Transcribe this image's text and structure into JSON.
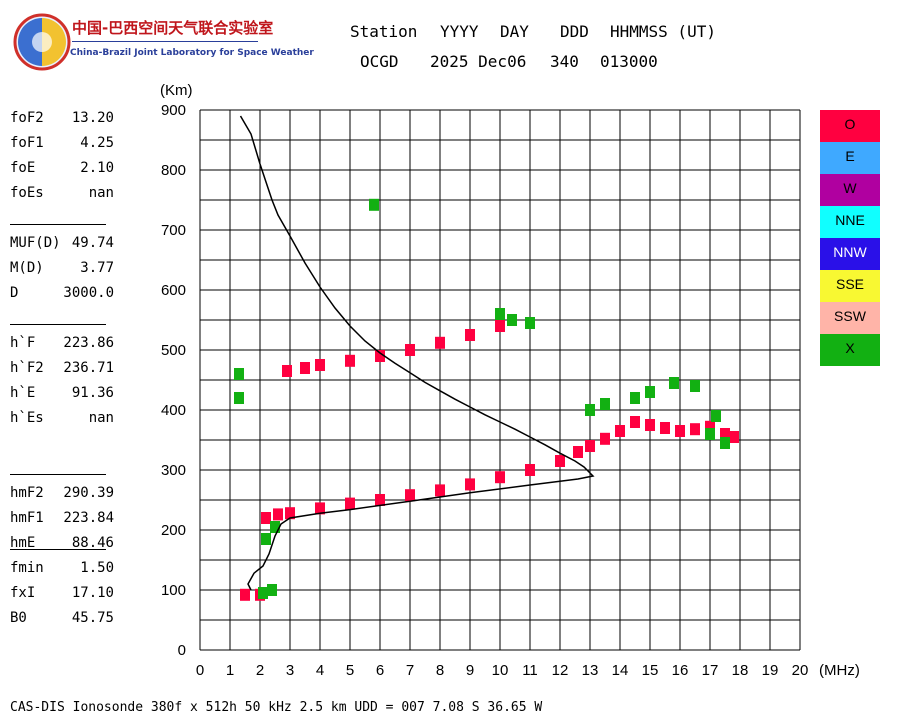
{
  "header": {
    "org_cn": "中国-巴西空间天气联合实验室",
    "org_en": "China-Brazil Joint Laboratory for Space Weather",
    "labels": [
      "Station",
      "YYYY",
      "DAY",
      "DDD",
      "HHMMSS (UT)"
    ],
    "values": [
      "OCGD",
      "2025 Dec06",
      "340",
      "013000"
    ]
  },
  "params": [
    [
      {
        "name": "foF2",
        "value": "13.20"
      },
      {
        "name": "foF1",
        "value": "4.25"
      },
      {
        "name": "foE",
        "value": "2.10"
      },
      {
        "name": "foEs",
        "value": "nan"
      }
    ],
    [
      {
        "name": "MUF(D)",
        "value": "49.74"
      },
      {
        "name": "M(D)",
        "value": "3.77"
      },
      {
        "name": "D",
        "value": "3000.0"
      }
    ],
    [
      {
        "name": "h`F",
        "value": "223.86"
      },
      {
        "name": "h`F2",
        "value": "236.71"
      },
      {
        "name": "h`E",
        "value": "91.36"
      },
      {
        "name": "h`Es",
        "value": "nan"
      }
    ],
    [
      {
        "name": "hmF2",
        "value": "290.39"
      },
      {
        "name": "hmF1",
        "value": "223.84"
      },
      {
        "name": "hmE",
        "value": "88.46"
      }
    ],
    [
      {
        "name": "fmin",
        "value": "1.50"
      },
      {
        "name": "fxI",
        "value": "17.10"
      },
      {
        "name": "B0",
        "value": "45.75"
      }
    ]
  ],
  "legend": [
    {
      "label": "O",
      "color": "#ff0040",
      "text_color": "#000000"
    },
    {
      "label": "E",
      "color": "#3fa9ff",
      "text_color": "#000000"
    },
    {
      "label": "W",
      "color": "#b000a0",
      "text_color": "#000000"
    },
    {
      "label": "NNE",
      "color": "#10ffff",
      "text_color": "#000000"
    },
    {
      "label": "NNW",
      "color": "#2a10e8",
      "text_color": "#ffffff"
    },
    {
      "label": "SSE",
      "color": "#f8f832",
      "text_color": "#000000"
    },
    {
      "label": "SSW",
      "color": "#ffb4a8",
      "text_color": "#000000"
    },
    {
      "label": "X",
      "color": "#12b012",
      "text_color": "#000000"
    }
  ],
  "footer": "CAS-DIS Ionosonde 380f x 512h 50 kHz 2.5 km UDD = 007 7.08 S 36.65 W",
  "chart_data": {
    "type": "scatter",
    "xlabel": "(MHz)",
    "ylabel": "(Km)",
    "xlim": [
      0,
      20
    ],
    "ylim": [
      0,
      900
    ],
    "grid": true,
    "xticks": [
      0,
      1,
      2,
      3,
      4,
      5,
      6,
      7,
      8,
      9,
      10,
      11,
      12,
      13,
      14,
      15,
      16,
      17,
      18,
      19,
      20
    ],
    "yticks": [
      0,
      100,
      200,
      300,
      400,
      500,
      600,
      700,
      800,
      900
    ],
    "traces": [
      {
        "name": "O",
        "color": "#ff0040",
        "points": [
          [
            1.5,
            92
          ],
          [
            2.0,
            92
          ],
          [
            2.2,
            220
          ],
          [
            2.6,
            226
          ],
          [
            3.0,
            228
          ],
          [
            4.0,
            236
          ],
          [
            5.0,
            244
          ],
          [
            6.0,
            250
          ],
          [
            7.0,
            258
          ],
          [
            8.0,
            266
          ],
          [
            9.0,
            276
          ],
          [
            10.0,
            288
          ],
          [
            11.0,
            300
          ],
          [
            12.0,
            315
          ],
          [
            12.6,
            330
          ],
          [
            13.0,
            340
          ],
          [
            13.5,
            352
          ],
          [
            14.0,
            365
          ],
          [
            14.5,
            380
          ],
          [
            15.0,
            375
          ],
          [
            15.5,
            370
          ],
          [
            16.0,
            365
          ],
          [
            16.5,
            368
          ],
          [
            17.0,
            372
          ],
          [
            17.5,
            360
          ],
          [
            17.8,
            355
          ],
          [
            2.9,
            465
          ],
          [
            3.5,
            470
          ],
          [
            4.0,
            475
          ],
          [
            5.0,
            482
          ],
          [
            6.0,
            490
          ],
          [
            7.0,
            500
          ],
          [
            8.0,
            512
          ],
          [
            9.0,
            525
          ],
          [
            10.0,
            540
          ]
        ]
      },
      {
        "name": "X",
        "color": "#12b012",
        "points": [
          [
            1.3,
            460
          ],
          [
            1.3,
            420
          ],
          [
            2.2,
            185
          ],
          [
            2.5,
            205
          ],
          [
            2.1,
            95
          ],
          [
            2.4,
            100
          ],
          [
            5.8,
            742
          ],
          [
            10.0,
            560
          ],
          [
            10.4,
            550
          ],
          [
            11.0,
            545
          ],
          [
            13.0,
            400
          ],
          [
            13.5,
            410
          ],
          [
            14.5,
            420
          ],
          [
            15.0,
            430
          ],
          [
            15.8,
            445
          ],
          [
            16.5,
            440
          ],
          [
            17.0,
            360
          ],
          [
            17.2,
            390
          ],
          [
            17.5,
            345
          ]
        ]
      }
    ],
    "profile": {
      "name": "electron-density-profile",
      "x": [
        1.35,
        1.7,
        2.0,
        2.2,
        2.4,
        2.6,
        3.0,
        3.5,
        4.0,
        4.5,
        5.0,
        5.5,
        6.0,
        6.5,
        7.0,
        7.5,
        8.0,
        8.5,
        9.0,
        9.5,
        10.0,
        10.5,
        11.0,
        11.5,
        12.0,
        12.5,
        12.8,
        13.1,
        12.6,
        11.0,
        9.0,
        7.0,
        5.0,
        4.0,
        3.0,
        2.7,
        2.5,
        2.3,
        2.1,
        1.8,
        1.6,
        1.7
      ],
      "y": [
        890,
        860,
        810,
        780,
        750,
        725,
        690,
        645,
        605,
        570,
        540,
        515,
        495,
        478,
        462,
        446,
        432,
        418,
        405,
        392,
        380,
        368,
        355,
        342,
        328,
        315,
        305,
        290,
        285,
        275,
        262,
        248,
        234,
        228,
        220,
        210,
        190,
        160,
        140,
        128,
        110,
        100
      ]
    }
  }
}
